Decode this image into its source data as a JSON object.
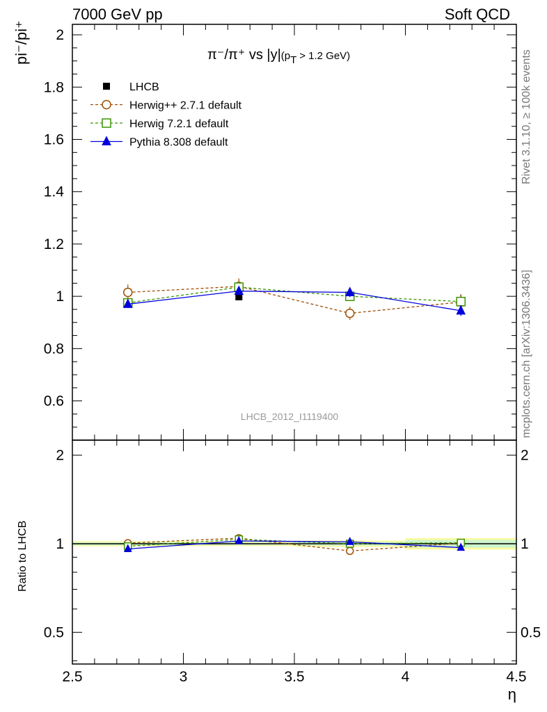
{
  "header": {
    "left": "7000 GeV pp",
    "right": "Soft QCD"
  },
  "side": {
    "rivet": "Rivet 3.1.10, ≥ 100k events",
    "mcplots": "mcplots.cern.ch [arXiv:1306.3436]"
  },
  "chart_data": {
    "type": "line",
    "title": "π⁻/π⁺ vs |y|",
    "title_sub": "(p",
    "title_sub_index": "T",
    "title_sub_tail": " > 1.2 GeV)",
    "xlabel": "η",
    "ylabel": "pi⁻/pi⁺",
    "ratio_ylabel": "Ratio to LHCB",
    "analysis_label": "LHCB_2012_I1119400",
    "xlim": [
      2.5,
      4.5
    ],
    "ylim": [
      0.45,
      2.04
    ],
    "ratio_ylim": [
      0.39,
      2.25
    ],
    "x_ticks": [
      "2.5",
      "3",
      "3.5",
      "4",
      "4.5"
    ],
    "x_tick_values": [
      2.5,
      3,
      3.5,
      4,
      4.5
    ],
    "y_ticks": [
      "0.6",
      "0.8",
      "1",
      "1.2",
      "1.4",
      "1.6",
      "1.8",
      "2"
    ],
    "y_tick_values": [
      0.6,
      0.8,
      1.0,
      1.2,
      1.4,
      1.6,
      1.8,
      2.0
    ],
    "ratio_ticks": [
      "0.5",
      "1",
      "2"
    ],
    "ratio_tick_values": [
      0.5,
      1,
      2
    ],
    "x": [
      2.75,
      3.25,
      3.75,
      4.25
    ],
    "data": {
      "name": "LHCB",
      "values": [
        1.015,
        0.998,
        1.003,
        0.975
      ],
      "errors": [
        0.012,
        0.01,
        0.015,
        0.03
      ],
      "color": "#000000"
    },
    "series": [
      {
        "name": "Herwig++ 2.7.1 default",
        "values": [
          1.015,
          1.038,
          0.935,
          0.978
        ],
        "errors": [
          0.03,
          0.03,
          0.025,
          0.03
        ],
        "ratio": [
          1.005,
          1.045,
          0.945,
          1.005
        ],
        "color": "#a04d00",
        "marker": "circle",
        "dash": true
      },
      {
        "name": "Herwig 7.2.1 default",
        "values": [
          0.975,
          1.035,
          1.0,
          0.98
        ],
        "errors": [
          0.015,
          0.015,
          0.015,
          0.015
        ],
        "ratio": [
          0.98,
          1.035,
          1.0,
          1.008
        ],
        "color": "#3a9400",
        "marker": "square",
        "dash": true
      },
      {
        "name": "Pythia 8.308 default",
        "values": [
          0.97,
          1.02,
          1.015,
          0.945
        ],
        "errors": [
          0.012,
          0.012,
          0.018,
          0.02
        ],
        "ratio": [
          0.96,
          1.022,
          1.015,
          0.97
        ],
        "color": "#0000dd",
        "marker": "triangle",
        "dash": false
      }
    ],
    "ratio_band": {
      "inner_color": "#ccf5cc",
      "outer_color": "#fbfba0",
      "inner": [
        0.012,
        0.01,
        0.015,
        0.03
      ],
      "outer": [
        0.02,
        0.018,
        0.025,
        0.045
      ]
    },
    "legend_position": "top-left"
  }
}
